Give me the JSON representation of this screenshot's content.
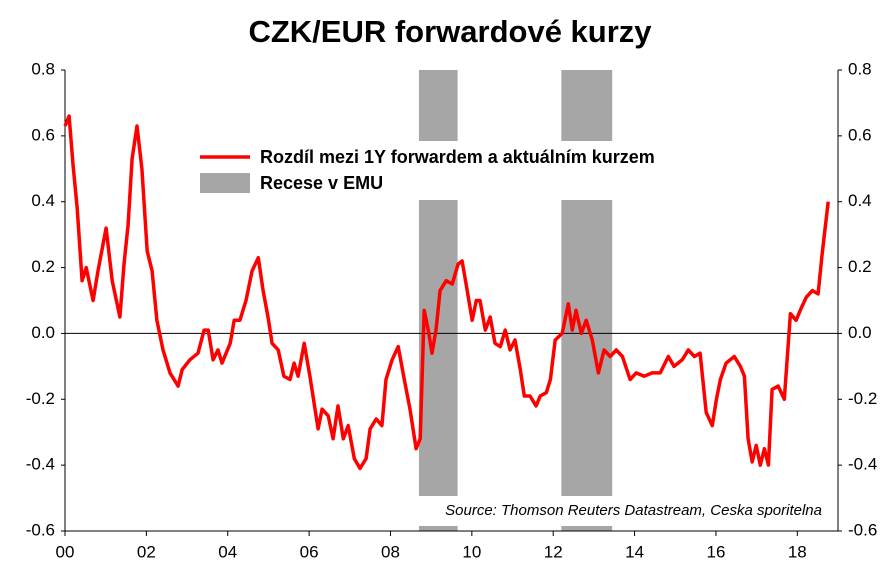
{
  "chart_data": {
    "type": "line",
    "title": "CZK/EUR forwardové kurzy",
    "annotation": "Source: Thomson Reuters Datastream, Ceska sporitelna",
    "xlim": [
      2000,
      2019
    ],
    "xticks": [
      {
        "value": 2000,
        "label": "00"
      },
      {
        "value": 2002,
        "label": "02"
      },
      {
        "value": 2004,
        "label": "04"
      },
      {
        "value": 2006,
        "label": "06"
      },
      {
        "value": 2008,
        "label": "08"
      },
      {
        "value": 2010,
        "label": "10"
      },
      {
        "value": 2012,
        "label": "12"
      },
      {
        "value": 2014,
        "label": "14"
      },
      {
        "value": 2016,
        "label": "16"
      },
      {
        "value": 2018,
        "label": "18"
      }
    ],
    "ylim": [
      -0.6,
      0.8
    ],
    "yticks": [
      -0.6,
      -0.4,
      -0.2,
      {
        "value": 0,
        "label": "0.0"
      },
      0.2,
      0.4,
      0.6,
      0.8
    ],
    "y2lim": [
      -0.6,
      0.8
    ],
    "y2ticks": [
      -0.6,
      -0.4,
      -0.2,
      {
        "value": 0,
        "label": "0.0"
      },
      0.2,
      0.4,
      0.6,
      0.8
    ],
    "shaded_regions": {
      "name": "Recese v EMU",
      "color": "#a6a6a6",
      "ranges": [
        [
          2008.7,
          2009.65
        ],
        [
          2012.2,
          2013.45
        ]
      ]
    },
    "series": [
      {
        "name": "Rozdíl mezi 1Y forwardem a aktuálním kurzem",
        "color": "#ff0000",
        "x": [
          2000.0,
          2000.1,
          2000.2,
          2000.3,
          2000.42,
          2000.52,
          2000.69,
          2000.81,
          2001.01,
          2001.16,
          2001.35,
          2001.45,
          2001.55,
          2001.65,
          2001.77,
          2001.89,
          2002.02,
          2002.14,
          2002.26,
          2002.41,
          2002.58,
          2002.78,
          2002.88,
          2003.07,
          2003.27,
          2003.42,
          2003.52,
          2003.64,
          2003.76,
          2003.86,
          2004.06,
          2004.16,
          2004.3,
          2004.45,
          2004.6,
          2004.75,
          2004.87,
          2004.99,
          2005.09,
          2005.24,
          2005.38,
          2005.53,
          2005.63,
          2005.73,
          2005.88,
          2006.02,
          2006.22,
          2006.32,
          2006.47,
          2006.59,
          2006.71,
          2006.84,
          2006.96,
          2007.11,
          2007.25,
          2007.4,
          2007.5,
          2007.65,
          2007.79,
          2007.89,
          2008.04,
          2008.19,
          2008.34,
          2008.48,
          2008.63,
          2008.73,
          2008.83,
          2008.93,
          2009.02,
          2009.12,
          2009.22,
          2009.37,
          2009.52,
          2009.66,
          2009.76,
          2009.86,
          2010.01,
          2010.11,
          2010.2,
          2010.33,
          2010.45,
          2010.57,
          2010.7,
          2010.82,
          2010.94,
          2011.06,
          2011.19,
          2011.29,
          2011.43,
          2011.58,
          2011.68,
          2011.83,
          2011.93,
          2012.05,
          2012.22,
          2012.37,
          2012.47,
          2012.56,
          2012.69,
          2012.81,
          2012.96,
          2013.11,
          2013.25,
          2013.4,
          2013.55,
          2013.7,
          2013.89,
          2014.04,
          2014.24,
          2014.43,
          2014.63,
          2014.83,
          2014.97,
          2015.17,
          2015.32,
          2015.47,
          2015.61,
          2015.76,
          2015.91,
          2016.01,
          2016.11,
          2016.25,
          2016.45,
          2016.6,
          2016.7,
          2016.79,
          2016.89,
          2016.99,
          2017.09,
          2017.19,
          2017.29,
          2017.38,
          2017.53,
          2017.68,
          2017.83,
          2017.97,
          2018.07,
          2018.22,
          2018.37,
          2018.51,
          2018.61,
          2018.76
        ],
        "values": [
          0.63,
          0.66,
          0.51,
          0.38,
          0.16,
          0.2,
          0.1,
          0.19,
          0.32,
          0.16,
          0.05,
          0.21,
          0.33,
          0.53,
          0.63,
          0.5,
          0.25,
          0.19,
          0.04,
          -0.05,
          -0.12,
          -0.16,
          -0.11,
          -0.08,
          -0.06,
          0.01,
          0.01,
          -0.08,
          -0.05,
          -0.09,
          -0.03,
          0.04,
          0.04,
          0.1,
          0.19,
          0.23,
          0.13,
          0.05,
          -0.03,
          -0.05,
          -0.13,
          -0.14,
          -0.09,
          -0.13,
          -0.03,
          -0.13,
          -0.29,
          -0.23,
          -0.25,
          -0.32,
          -0.22,
          -0.32,
          -0.28,
          -0.38,
          -0.41,
          -0.38,
          -0.29,
          -0.26,
          -0.28,
          -0.14,
          -0.08,
          -0.04,
          -0.14,
          -0.23,
          -0.35,
          -0.32,
          0.07,
          0.01,
          -0.06,
          0.01,
          0.13,
          0.16,
          0.15,
          0.21,
          0.22,
          0.15,
          0.04,
          0.1,
          0.1,
          0.01,
          0.05,
          -0.03,
          -0.04,
          0.01,
          -0.05,
          -0.02,
          -0.11,
          -0.19,
          -0.19,
          -0.22,
          -0.19,
          -0.18,
          -0.14,
          -0.02,
          0.0,
          0.09,
          0.01,
          0.07,
          0.0,
          0.04,
          -0.02,
          -0.12,
          -0.05,
          -0.07,
          -0.05,
          -0.07,
          -0.14,
          -0.12,
          -0.13,
          -0.12,
          -0.12,
          -0.07,
          -0.1,
          -0.08,
          -0.05,
          -0.07,
          -0.06,
          -0.24,
          -0.28,
          -0.2,
          -0.14,
          -0.09,
          -0.07,
          -0.1,
          -0.13,
          -0.32,
          -0.39,
          -0.34,
          -0.4,
          -0.35,
          -0.4,
          -0.17,
          -0.16,
          -0.2,
          0.06,
          0.04,
          0.07,
          0.11,
          0.13,
          0.12,
          0.24,
          0.4
        ]
      }
    ]
  }
}
